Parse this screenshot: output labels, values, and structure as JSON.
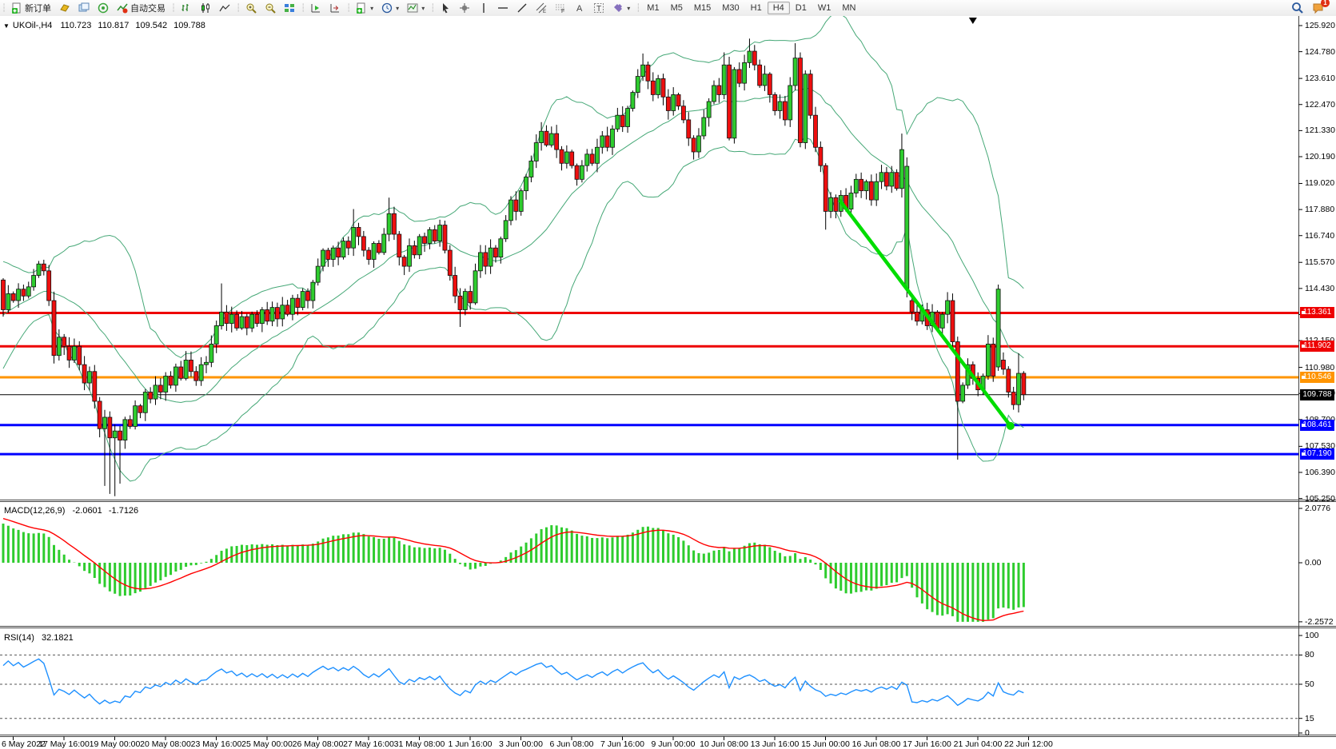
{
  "toolbar": {
    "new_order_label": "新订单",
    "autotrading_label": "自动交易",
    "timeframes": [
      "M1",
      "M5",
      "M15",
      "M30",
      "H1",
      "H4",
      "D1",
      "W1",
      "MN"
    ],
    "active_timeframe": "H4",
    "notification_badge": "1"
  },
  "chart": {
    "title": {
      "symbol_period": "UKOil-,H4",
      "open": "110.723",
      "high": "110.817",
      "low": "109.542",
      "close": "109.788"
    },
    "price_axis": {
      "ticks": [
        "125.920",
        "124.780",
        "123.610",
        "122.470",
        "121.330",
        "120.190",
        "119.020",
        "117.880",
        "116.740",
        "115.570",
        "114.430",
        "113.290",
        "112.150",
        "110.980",
        "109.840",
        "108.700",
        "107.530",
        "106.390",
        "105.250"
      ],
      "top_tick_value": 125.92,
      "bottom_tick_value": 105.25
    },
    "hlines": [
      {
        "price": 113.361,
        "label": "113.361",
        "color": "#EE0000",
        "width": 3,
        "current": false
      },
      {
        "price": 111.902,
        "label": "111.902",
        "color": "#EE0000",
        "width": 3,
        "current": false
      },
      {
        "price": 110.546,
        "label": "110.546",
        "color": "#FF9400",
        "width": 3,
        "current": false
      },
      {
        "price": 109.788,
        "label": "109.788",
        "color": "#000000",
        "width": 1,
        "current": true
      },
      {
        "price": 108.461,
        "label": "108.461",
        "color": "#0000FF",
        "width": 3,
        "current": false
      },
      {
        "price": 107.19,
        "label": "107.190",
        "color": "#0000FF",
        "width": 3,
        "current": false
      }
    ],
    "trendline": {
      "from_bar": 164.7,
      "from_price": 118.3,
      "to_bar": 198.4,
      "to_price": 108.42,
      "color": "#00DD00",
      "width": 4.5,
      "end_dot": true
    },
    "shift_marker_bar": 191,
    "bollinger": {
      "period": 20,
      "deviation": 2,
      "color": "#46A877"
    },
    "candles": {
      "up_color": "#2ECC2E",
      "down_color": "#EE0F0F",
      "wick_color": "#000000",
      "warmup": {
        "bars": 40,
        "from": 104.0,
        "mid": 113.5,
        "end": 114.8
      },
      "closes": [
        113.5,
        114.2,
        113.9,
        114.4,
        114.1,
        114.5,
        115.0,
        115.5,
        115.2,
        113.9,
        111.5,
        112.3,
        111.9,
        111.3,
        111.9,
        111.1,
        110.3,
        110.8,
        109.5,
        108.3,
        108.8,
        107.9,
        108.2,
        107.8,
        108.7,
        108.4,
        109.3,
        109.0,
        109.9,
        109.6,
        110.2,
        109.9,
        110.6,
        110.2,
        111.0,
        110.5,
        111.3,
        110.8,
        110.4,
        111.1,
        111.2,
        112.0,
        112.8,
        113.4,
        112.9,
        113.3,
        112.7,
        113.2,
        112.7,
        113.3,
        112.9,
        113.5,
        113.0,
        113.6,
        113.1,
        113.7,
        113.3,
        114.0,
        113.6,
        114.3,
        113.9,
        114.7,
        115.4,
        116.1,
        115.7,
        116.2,
        115.8,
        116.5,
        116.2,
        117.1,
        116.7,
        116.1,
        115.7,
        116.4,
        116.0,
        116.8,
        117.7,
        116.8,
        115.8,
        115.4,
        116.3,
        115.9,
        116.7,
        116.4,
        117.0,
        116.5,
        117.2,
        116.1,
        115.0,
        114.1,
        113.5,
        114.3,
        113.8,
        115.2,
        116.0,
        115.4,
        116.2,
        115.8,
        116.6,
        117.4,
        118.3,
        117.8,
        118.7,
        119.3,
        120.0,
        120.8,
        121.3,
        120.7,
        121.2,
        120.5,
        119.9,
        120.4,
        119.8,
        119.2,
        119.8,
        120.3,
        119.9,
        120.6,
        121.1,
        120.6,
        121.4,
        122.0,
        121.5,
        122.3,
        123.0,
        123.7,
        124.2,
        123.5,
        122.9,
        123.6,
        122.8,
        122.2,
        122.9,
        122.4,
        121.8,
        121.0,
        120.4,
        121.1,
        121.9,
        122.6,
        123.3,
        122.9,
        124.2,
        121.0,
        124.0,
        123.4,
        124.3,
        124.8,
        124.2,
        123.3,
        123.8,
        122.9,
        122.2,
        122.6,
        121.8,
        123.3,
        124.5,
        120.8,
        123.8,
        122.0,
        120.6,
        119.8,
        117.8,
        118.4,
        117.8,
        118.5,
        117.9,
        118.6,
        119.2,
        118.7,
        119.1,
        118.3,
        119.1,
        119.5,
        118.9,
        119.5,
        118.8,
        120.5,
        119.77,
        113.4,
        113.0,
        113.5,
        112.8,
        113.4,
        112.7,
        113.3,
        113.9,
        112.1,
        109.5,
        110.2,
        111.1,
        110.5,
        110.0,
        110.6,
        112.0,
        110.6,
        114.4,
        110.9,
        109.9,
        109.35,
        110.72,
        109.788
      ],
      "open_overrides": {
        "178": 114.43,
        "179": 113.9,
        "196": 111.0,
        "197": 111.3,
        "201": 110.723
      },
      "high_overrides": {
        "43": 114.65,
        "69": 117.9,
        "76": 118.4,
        "106": 121.7,
        "126": 124.7,
        "142": 124.75,
        "147": 125.35,
        "156": 125.15,
        "177": 121.2,
        "196": 114.6,
        "200": 111.6,
        "201": 110.817
      },
      "low_overrides": {
        "10": 111.15,
        "20": 105.8,
        "21": 105.45,
        "22": 105.35,
        "23": 105.9,
        "90": 112.75,
        "143": 120.9,
        "157": 120.6,
        "162": 117.0,
        "188": 106.95,
        "201": 109.542
      }
    }
  },
  "macd_panel": {
    "label": "MACD(12,26,9)",
    "value_main": "-2.0601",
    "value_signal": "-1.7126",
    "axis_ticks": [
      "2.0776",
      "0.00",
      "-2.2572"
    ],
    "axis_tick_values": [
      2.0776,
      0.0,
      -2.2572
    ],
    "histogram_color": "#2ECC2E",
    "signal_color": "#FF0000"
  },
  "rsi_panel": {
    "label": "RSI(14)",
    "value": "32.1821",
    "axis_ticks": [
      "100",
      "80",
      "50",
      "15",
      "0"
    ],
    "axis_tick_values": [
      100,
      80,
      50,
      15,
      0
    ],
    "levels": [
      80,
      50,
      15
    ],
    "line_color": "#1E90FF"
  },
  "time_axis": {
    "labels": [
      "6 May 2022",
      "17 May 16:00",
      "19 May 00:00",
      "20 May 08:00",
      "23 May 16:00",
      "25 May 00:00",
      "26 May 08:00",
      "27 May 16:00",
      "31 May 08:00",
      "1 Jun 16:00",
      "3 Jun 00:00",
      "6 Jun 08:00",
      "7 Jun 16:00",
      "9 Jun 00:00",
      "10 Jun 08:00",
      "13 Jun 16:00",
      "15 Jun 00:00",
      "16 Jun 08:00",
      "17 Jun 16:00",
      "21 Jun 04:00",
      "22 Jun 12:00"
    ]
  }
}
